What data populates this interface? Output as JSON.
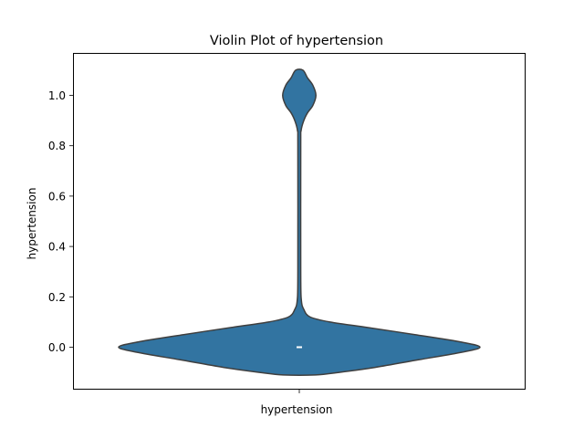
{
  "chart_data": {
    "type": "violin",
    "title": "Violin Plot of hypertension",
    "xlabel": "",
    "ylabel": "hypertension",
    "categories": [
      "hypertension"
    ],
    "ylim": [
      -0.113,
      1.16
    ],
    "yticks": [
      0.0,
      0.2,
      0.4,
      0.6,
      0.8,
      1.0
    ],
    "ytick_labels": [
      "0.0",
      "0.2",
      "0.4",
      "0.6",
      "0.8",
      "1.0"
    ],
    "grid": false,
    "legend": "none",
    "violin_color": "#3274a1",
    "edge_color": "#3f3f3f",
    "median_marker_color": "#ffffff",
    "density_profile": [
      {
        "y": -0.11,
        "w": 0.09
      },
      {
        "y": -0.1,
        "w": 0.22
      },
      {
        "y": -0.08,
        "w": 0.42
      },
      {
        "y": -0.05,
        "w": 0.66
      },
      {
        "y": -0.02,
        "w": 0.9
      },
      {
        "y": 0.0,
        "w": 1.0
      },
      {
        "y": 0.02,
        "w": 0.9
      },
      {
        "y": 0.05,
        "w": 0.64
      },
      {
        "y": 0.08,
        "w": 0.36
      },
      {
        "y": 0.1,
        "w": 0.17
      },
      {
        "y": 0.12,
        "w": 0.06
      },
      {
        "y": 0.15,
        "w": 0.025
      },
      {
        "y": 0.19,
        "w": 0.011
      },
      {
        "y": 0.3,
        "w": 0.008
      },
      {
        "y": 0.8,
        "w": 0.008
      },
      {
        "y": 0.86,
        "w": 0.01
      },
      {
        "y": 0.9,
        "w": 0.025
      },
      {
        "y": 0.93,
        "w": 0.045
      },
      {
        "y": 0.96,
        "w": 0.075
      },
      {
        "y": 1.0,
        "w": 0.092
      },
      {
        "y": 1.04,
        "w": 0.075
      },
      {
        "y": 1.07,
        "w": 0.045
      },
      {
        "y": 1.1,
        "w": 0.02
      }
    ],
    "median": 0.0
  }
}
